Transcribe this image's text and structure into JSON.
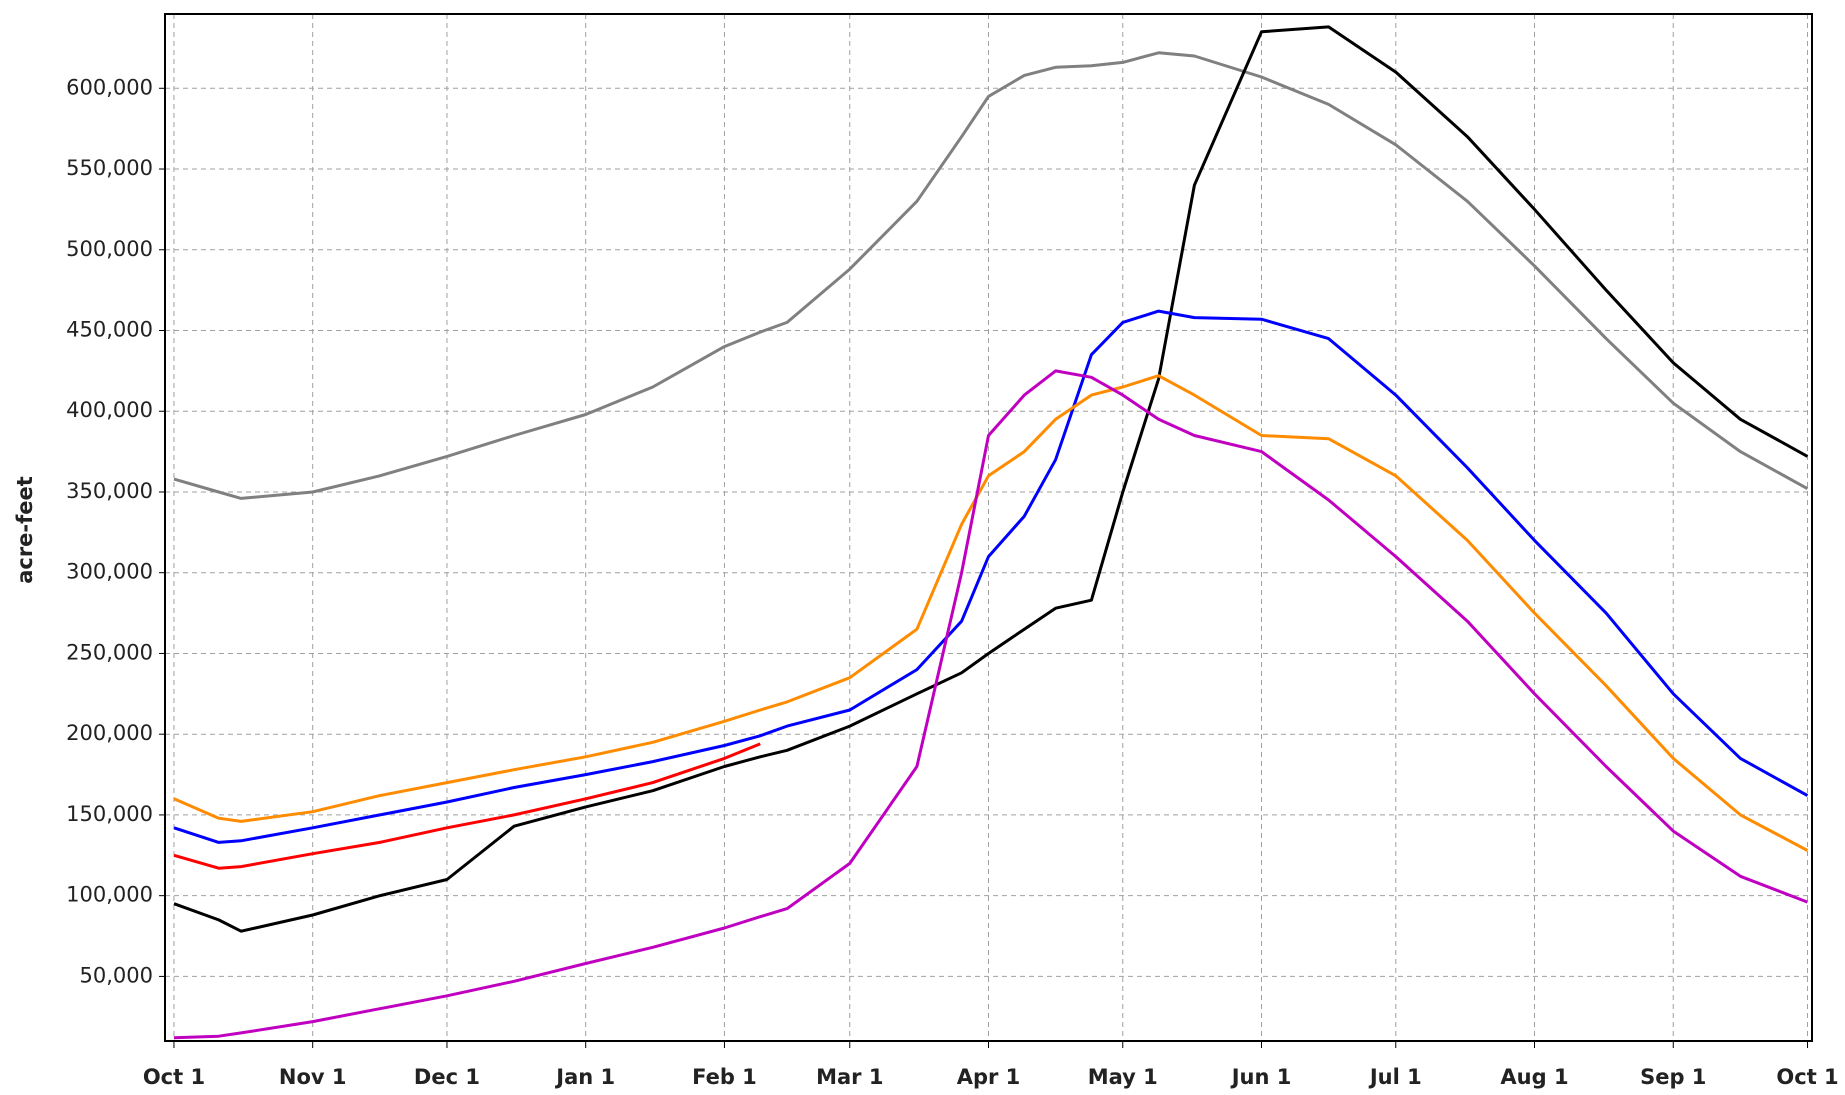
{
  "chart_data": {
    "type": "line",
    "y_label": "acre-feet",
    "x": [
      0,
      10,
      15,
      31,
      46,
      61,
      76,
      92,
      107,
      123,
      131,
      137,
      151,
      166,
      176,
      182,
      190,
      197,
      205,
      212,
      220,
      228,
      243,
      258,
      273,
      289,
      304,
      320,
      335,
      350,
      365
    ],
    "series": [
      {
        "color": "#808080",
        "values": [
          358000,
          350000,
          346000,
          350000,
          360000,
          372000,
          385000,
          398000,
          415000,
          440000,
          449000,
          455000,
          488000,
          530000,
          570000,
          595000,
          608000,
          613000,
          614000,
          616000,
          622000,
          620000,
          607000,
          590000,
          565000,
          530000,
          490000,
          445000,
          405000,
          375000,
          352000
        ]
      },
      {
        "color": "#000000",
        "values": [
          95000,
          85000,
          78000,
          88000,
          100000,
          110000,
          143000,
          155000,
          165000,
          180000,
          186000,
          190000,
          205000,
          225000,
          238000,
          250000,
          265000,
          278000,
          283000,
          350000,
          420000,
          540000,
          635000,
          638000,
          610000,
          570000,
          525000,
          475000,
          430000,
          395000,
          372000
        ]
      },
      {
        "color": "#0000ff",
        "values": [
          142000,
          133000,
          134000,
          142000,
          150000,
          158000,
          167000,
          175000,
          183000,
          193000,
          199000,
          205000,
          215000,
          240000,
          270000,
          310000,
          335000,
          370000,
          435000,
          455000,
          462000,
          458000,
          457000,
          445000,
          410000,
          365000,
          320000,
          275000,
          225000,
          185000,
          162000
        ]
      },
      {
        "color": "#ff8c00",
        "values": [
          160000,
          148000,
          146000,
          152000,
          162000,
          170000,
          178000,
          186000,
          195000,
          208000,
          215000,
          220000,
          235000,
          265000,
          330000,
          360000,
          375000,
          395000,
          410000,
          415000,
          422000,
          410000,
          385000,
          383000,
          360000,
          320000,
          275000,
          230000,
          185000,
          150000,
          128000
        ]
      },
      {
        "color": "#c000c0",
        "values": [
          12000,
          13000,
          15000,
          22000,
          30000,
          38000,
          47000,
          58000,
          68000,
          80000,
          87000,
          92000,
          120000,
          180000,
          300000,
          385000,
          410000,
          425000,
          421000,
          410000,
          395000,
          385000,
          375000,
          345000,
          310000,
          270000,
          225000,
          180000,
          140000,
          112000,
          96000
        ]
      },
      {
        "color": "#ff0000",
        "values": [
          125000,
          117000,
          118000,
          126000,
          133000,
          142000,
          150000,
          160000,
          170000,
          185000,
          194000,
          null,
          null,
          null,
          null,
          null,
          null,
          null,
          null,
          null,
          null,
          null,
          null,
          null,
          null,
          null,
          null,
          null,
          null,
          null,
          null
        ]
      }
    ],
    "xlim": [
      -2,
      366
    ],
    "xticks": [
      {
        "value": 0,
        "label": "Oct 1"
      },
      {
        "value": 31,
        "label": "Nov 1"
      },
      {
        "value": 61,
        "label": "Dec 1"
      },
      {
        "value": 92,
        "label": "Jan 1"
      },
      {
        "value": 123,
        "label": "Feb 1"
      },
      {
        "value": 151,
        "label": "Mar 1"
      },
      {
        "value": 182,
        "label": "Apr 1"
      },
      {
        "value": 212,
        "label": "May 1"
      },
      {
        "value": 243,
        "label": "Jun 1"
      },
      {
        "value": 273,
        "label": "Jul 1"
      },
      {
        "value": 304,
        "label": "Aug 1"
      },
      {
        "value": 335,
        "label": "Sep 1"
      },
      {
        "value": 365,
        "label": "Oct 1"
      }
    ],
    "ylim": [
      10000,
      646000
    ],
    "yticks": [
      {
        "value": 50000,
        "label": "50,000"
      },
      {
        "value": 100000,
        "label": "100,000"
      },
      {
        "value": 150000,
        "label": "150,000"
      },
      {
        "value": 200000,
        "label": "200,000"
      },
      {
        "value": 250000,
        "label": "250,000"
      },
      {
        "value": 300000,
        "label": "300,000"
      },
      {
        "value": 350000,
        "label": "350,000"
      },
      {
        "value": 400000,
        "label": "400,000"
      },
      {
        "value": 450000,
        "label": "450,000"
      },
      {
        "value": 500000,
        "label": "500,000"
      },
      {
        "value": 550000,
        "label": "550,000"
      },
      {
        "value": 600000,
        "label": "600,000"
      }
    ],
    "grid": true
  }
}
